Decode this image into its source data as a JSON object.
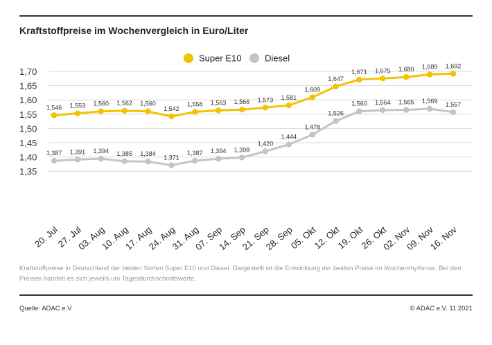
{
  "title": "Kraftstoffpreise im Wochenvergleich in Euro/Liter",
  "description": "Kraftstoffpreise in Deutschland der beiden Sorten Super E10 und Diesel. Dargestellt ist die Entwicklung der beiden Preise im Wochenrhythmus. Bei den Preisen handelt es sich jeweils um Tagesdurchschnittswerte.",
  "source": "Quelle: ADAC e.V.",
  "copyright": "© ADAC e.V. 11.2021",
  "colors": {
    "super": "#f2c300",
    "diesel": "#c4c4c4",
    "grid": "#d9d9d9",
    "rule": "#333333"
  },
  "chart_data": {
    "type": "line",
    "title": "Kraftstoffpreise im Wochenvergleich in Euro/Liter",
    "xlabel": "",
    "ylabel": "",
    "ylim": [
      1.33,
      1.7
    ],
    "yticks": [
      "1,70",
      "1,65",
      "1,60",
      "1,55",
      "1,50",
      "1,45",
      "1,40",
      "1,35"
    ],
    "grid": true,
    "legend_position": "top-center",
    "categories": [
      "20. Jul",
      "27. Jul",
      "03. Aug",
      "10. Aug",
      "17. Aug",
      "24. Aug",
      "31. Aug",
      "07. Sep",
      "14. Sep",
      "21. Sep",
      "28. Sep",
      "05. Okt",
      "12. Okt",
      "19. Okt",
      "26. Okt",
      "02. Nov",
      "09. Nov",
      "16. Nov"
    ],
    "series": [
      {
        "name": "Super E10",
        "color": "#f2c300",
        "values": [
          1.546,
          1.553,
          1.56,
          1.562,
          1.56,
          1.542,
          1.558,
          1.563,
          1.566,
          1.573,
          1.581,
          1.609,
          1.647,
          1.671,
          1.675,
          1.68,
          1.689,
          1.692
        ],
        "labels": [
          "1,546",
          "1,553",
          "1,560",
          "1,562",
          "1,560",
          "1,542",
          "1,558",
          "1,563",
          "1,566",
          "1,573",
          "1,581",
          "1,609",
          "1,647",
          "1,671",
          "1,675",
          "1,680",
          "1,689",
          "1,692"
        ]
      },
      {
        "name": "Diesel",
        "color": "#c4c4c4",
        "values": [
          1.387,
          1.391,
          1.394,
          1.385,
          1.384,
          1.371,
          1.387,
          1.394,
          1.398,
          1.42,
          1.444,
          1.478,
          1.526,
          1.56,
          1.564,
          1.565,
          1.569,
          1.557
        ],
        "labels": [
          "1,387",
          "1,391",
          "1,394",
          "1,385",
          "1,384",
          "1,371",
          "1,387",
          "1,394",
          "1,398",
          "1,420",
          "1,444",
          "1,478",
          "1,526",
          "1,560",
          "1,564",
          "1,565",
          "1,569",
          "1,557"
        ]
      }
    ]
  }
}
